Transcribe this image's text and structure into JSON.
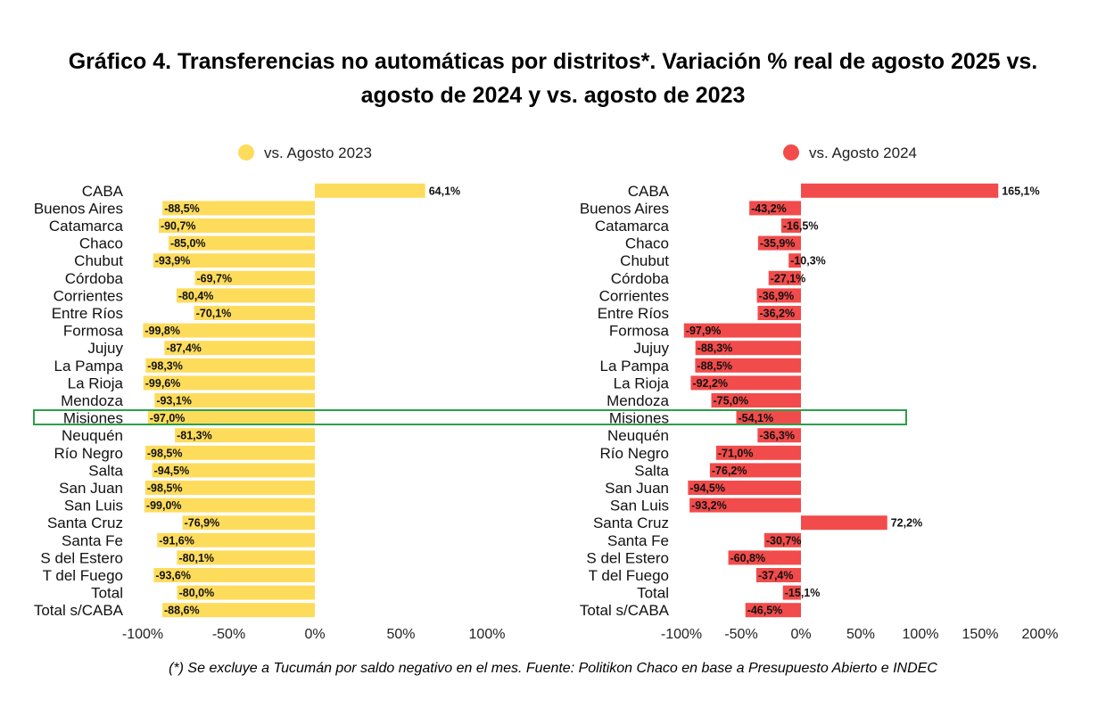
{
  "title_line1": "Gráfico 4. Transferencias no automáticas por distritos*. Variación % real de agosto 2025 vs.",
  "title_line2": "agosto de 2024 y vs. agosto de 2023",
  "footnote": "(*) Se excluye a Tucumán por saldo negativo en el mes. Fuente: Politikon Chaco en base a Presupuesto Abierto e INDEC",
  "highlighted_category": "Misiones",
  "chart_data": [
    {
      "type": "bar",
      "orientation": "horizontal",
      "legend": "vs. Agosto 2023",
      "color": "#fddc5c",
      "categories": [
        "CABA",
        "Buenos Aires",
        "Catamarca",
        "Chaco",
        "Chubut",
        "Córdoba",
        "Corrientes",
        "Entre Ríos",
        "Formosa",
        "Jujuy",
        "La Pampa",
        "La Rioja",
        "Mendoza",
        "Misiones",
        "Neuquén",
        "Río Negro",
        "Salta",
        "San Juan",
        "San Luis",
        "Santa Cruz",
        "Santa Fe",
        "S del Estero",
        "T del Fuego",
        "Total",
        "Total s/CABA"
      ],
      "values": [
        64.1,
        -88.5,
        -90.7,
        -85.0,
        -93.9,
        -69.7,
        -80.4,
        -70.1,
        -99.8,
        -87.4,
        -98.3,
        -99.6,
        -93.1,
        -97.0,
        -81.3,
        -98.5,
        -94.5,
        -98.5,
        -99.0,
        -76.9,
        -91.6,
        -80.1,
        -93.6,
        -80.0,
        -88.6
      ],
      "labels": [
        "64,1%",
        "-88,5%",
        "-90,7%",
        "-85,0%",
        "-93,9%",
        "-69,7%",
        "-80,4%",
        "-70,1%",
        "-99,8%",
        "-87,4%",
        "-98,3%",
        "-99,6%",
        "-93,1%",
        "-97,0%",
        "-81,3%",
        "-98,5%",
        "-94,5%",
        "-98,5%",
        "-99,0%",
        "-76,9%",
        "-91,6%",
        "-80,1%",
        "-93,6%",
        "-80,0%",
        "-88,6%"
      ],
      "xlim": [
        -100,
        100
      ],
      "xticks": [
        -100,
        -50,
        0,
        50,
        100
      ],
      "xtick_labels": [
        "-100%",
        "-50%",
        "0%",
        "50%",
        "100%"
      ]
    },
    {
      "type": "bar",
      "orientation": "horizontal",
      "legend": "vs. Agosto 2024",
      "color": "#f24b4b",
      "categories": [
        "CABA",
        "Buenos Aires",
        "Catamarca",
        "Chaco",
        "Chubut",
        "Córdoba",
        "Corrientes",
        "Entre Ríos",
        "Formosa",
        "Jujuy",
        "La Pampa",
        "La Rioja",
        "Mendoza",
        "Misiones",
        "Neuquén",
        "Río Negro",
        "Salta",
        "San Juan",
        "San Luis",
        "Santa Cruz",
        "Santa Fe",
        "S del Estero",
        "T del Fuego",
        "Total",
        "Total s/CABA"
      ],
      "values": [
        165.1,
        -43.2,
        -16.5,
        -35.9,
        -10.3,
        -27.1,
        -36.9,
        -36.2,
        -97.9,
        -88.3,
        -88.5,
        -92.2,
        -75.0,
        -54.1,
        -36.3,
        -71.0,
        -76.2,
        -94.5,
        -93.2,
        72.2,
        -30.7,
        -60.8,
        -37.4,
        -15.1,
        -46.5
      ],
      "labels": [
        "165,1%",
        "-43,2%",
        "-16,5%",
        "-35,9%",
        "-10,3%",
        "-27,1%",
        "-36,9%",
        "-36,2%",
        "-97,9%",
        "-88,3%",
        "-88,5%",
        "-92,2%",
        "-75,0%",
        "-54,1%",
        "-36,3%",
        "-71,0%",
        "-76,2%",
        "-94,5%",
        "-93,2%",
        "72,2%",
        "-30,7%",
        "-60,8%",
        "-37,4%",
        "-15,1%",
        "-46,5%"
      ],
      "xlim": [
        -100,
        200
      ],
      "xticks": [
        -100,
        -50,
        0,
        50,
        100,
        150,
        200
      ],
      "xtick_labels": [
        "-100%",
        "-50%",
        "0%",
        "50%",
        "100%",
        "150%",
        "200%"
      ]
    }
  ]
}
